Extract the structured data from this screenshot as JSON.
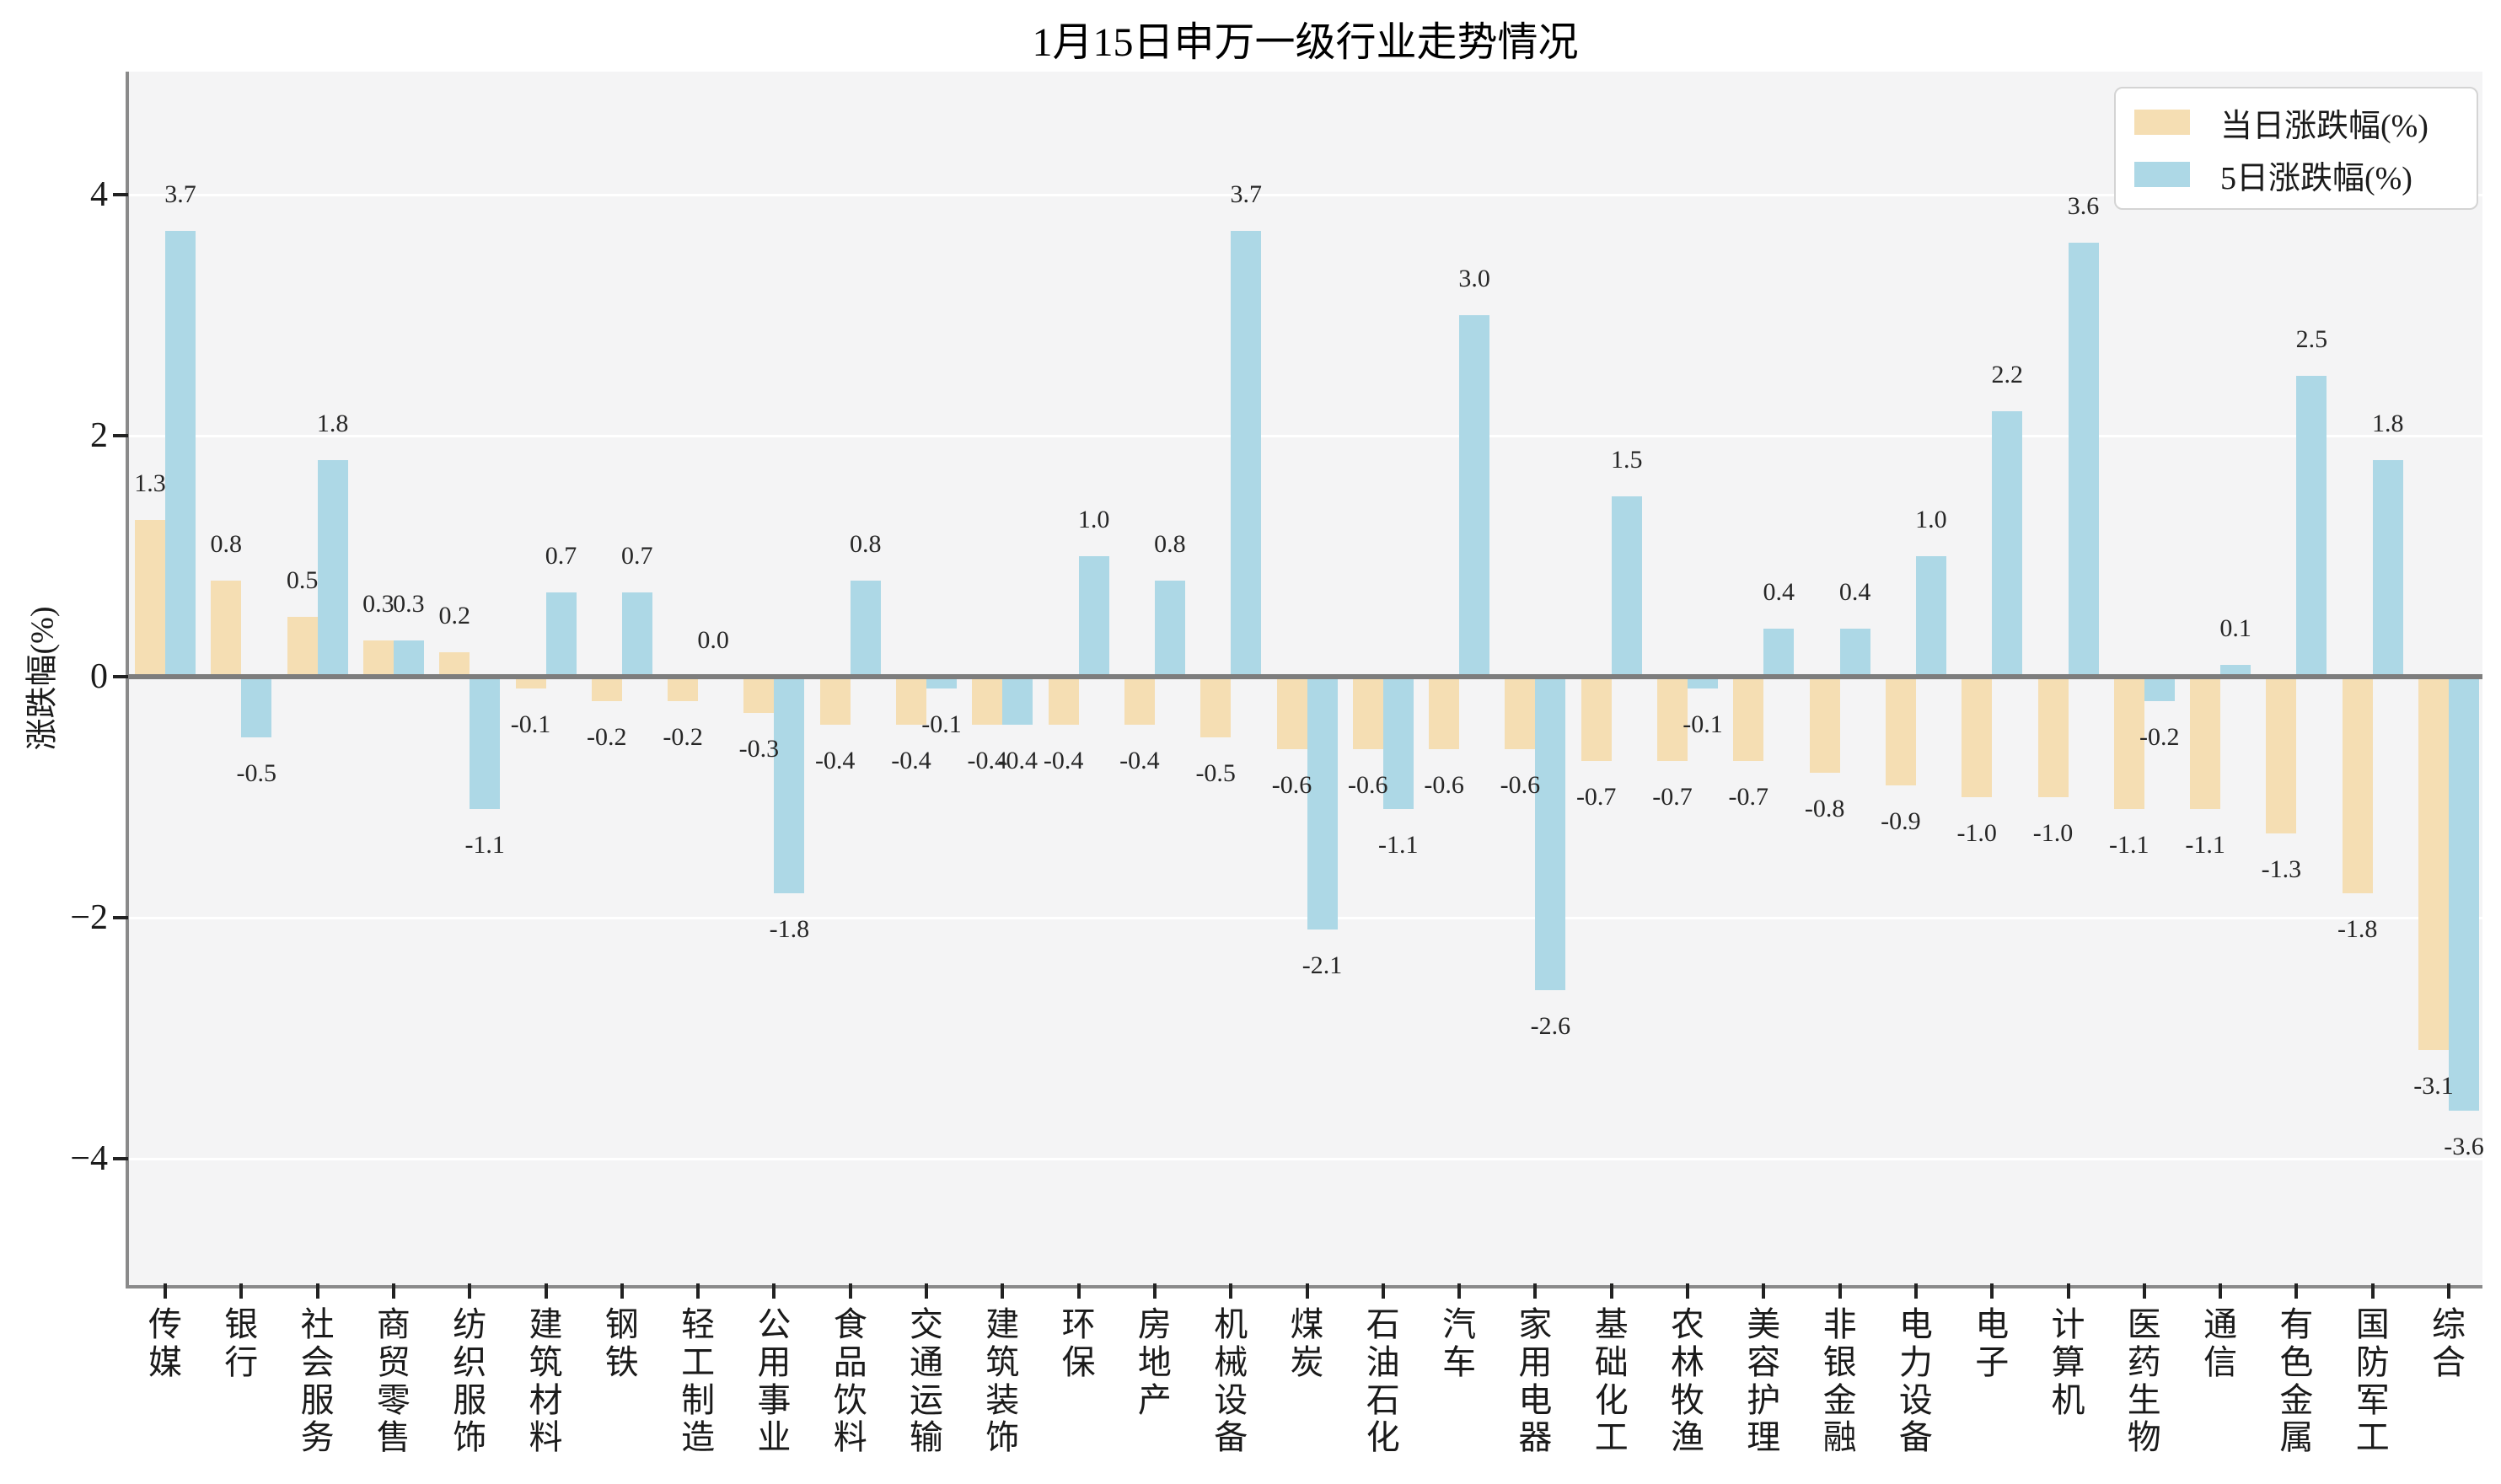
{
  "title": "1月15日申万一级行业走势情况",
  "y_axis": {
    "label": "涨跌幅(%)",
    "tick_labels": [
      "4",
      "2",
      "0",
      "−2",
      "−4"
    ],
    "tick_values": [
      4,
      2,
      0,
      -2,
      -4
    ]
  },
  "colors": {
    "daily_bar": "#f5deb3",
    "five_day_bar": "#add8e6",
    "plot_background": "#f4f4f5",
    "grid_line": "#ffffff",
    "zero_line": "#7d7d7d",
    "spine": "#8a8a8a",
    "text": "#1a1a1a"
  },
  "chart_data": {
    "type": "bar",
    "title": "1月15日申万一级行业走势情况",
    "xlabel": "",
    "ylabel": "涨跌幅(%)",
    "ylim": [
      -4.9,
      5.0
    ],
    "yticks": [
      4,
      2,
      0,
      -2,
      -4
    ],
    "grid": true,
    "legend_position": "upper right",
    "categories": [
      "传媒",
      "银行",
      "社会服务",
      "商贸零售",
      "纺织服饰",
      "建筑材料",
      "钢铁",
      "轻工制造",
      "公用事业",
      "食品饮料",
      "交通运输",
      "建筑装饰",
      "环保",
      "房地产",
      "机械设备",
      "煤炭",
      "石油石化",
      "汽车",
      "家用电器",
      "基础化工",
      "农林牧渔",
      "美容护理",
      "非银金融",
      "电力设备",
      "电子",
      "计算机",
      "医药生物",
      "通信",
      "有色金属",
      "国防军工",
      "综合"
    ],
    "series": [
      {
        "name": "当日涨跌幅(%)",
        "color": "#f5deb3",
        "values": [
          1.3,
          0.8,
          0.5,
          0.3,
          0.2,
          -0.1,
          -0.2,
          -0.2,
          -0.3,
          -0.4,
          -0.4,
          -0.4,
          -0.4,
          -0.4,
          -0.5,
          -0.6,
          -0.6,
          -0.6,
          -0.6,
          -0.7,
          -0.7,
          -0.7,
          -0.8,
          -0.9,
          -1.0,
          -1.0,
          -1.1,
          -1.1,
          -1.3,
          -1.8,
          -3.1
        ]
      },
      {
        "name": "5日涨跌幅(%)",
        "color": "#add8e6",
        "values": [
          3.7,
          -0.5,
          1.8,
          0.3,
          -1.1,
          0.7,
          0.7,
          0.0,
          -1.8,
          0.8,
          -0.1,
          -0.4,
          1.0,
          0.8,
          3.7,
          -2.1,
          -1.1,
          3.0,
          -2.6,
          1.5,
          -0.1,
          0.4,
          0.4,
          1.0,
          2.2,
          3.6,
          -0.2,
          0.1,
          2.5,
          1.8,
          -3.6
        ]
      }
    ]
  }
}
